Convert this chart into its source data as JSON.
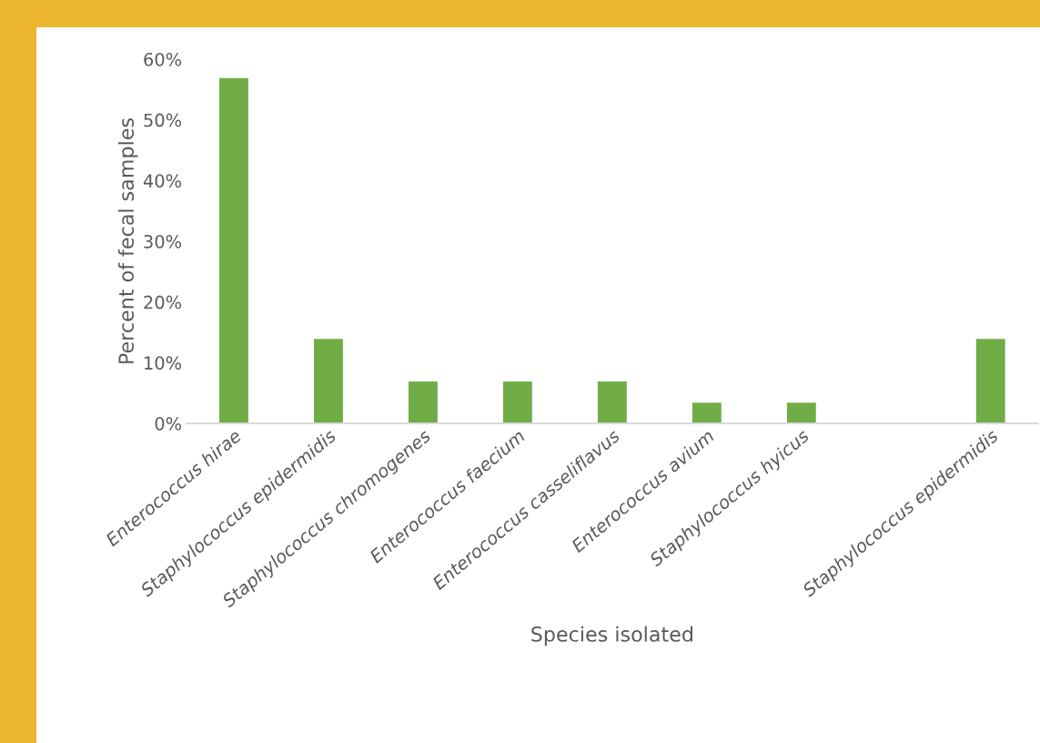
{
  "chart_data": {
    "type": "bar",
    "xlabel": "Species isolated",
    "ylabel": "Percent of fecal samples",
    "categories": [
      "Enterococcus hirae",
      "Staphylococcus epidermidis",
      "Staphylococcus chromogenes",
      "Enterococcus faecium",
      "Enterococcus casseliflavus",
      "Enterococcus avium",
      "Staphylococcus hyicus",
      null,
      "Staphylococcus epidermidis"
    ],
    "values": [
      57,
      14,
      7,
      7,
      7,
      3.5,
      3.5,
      null,
      14
    ],
    "color": "#70ad47",
    "ylim": [
      0,
      60
    ],
    "yticks": [
      {
        "value": 0,
        "label": "0%"
      },
      {
        "value": 10,
        "label": "10%"
      },
      {
        "value": 20,
        "label": "20%"
      },
      {
        "value": 30,
        "label": "30%"
      },
      {
        "value": 40,
        "label": "40%"
      },
      {
        "value": 50,
        "label": "50%"
      },
      {
        "value": 60,
        "label": "60%"
      }
    ],
    "grid": false,
    "legend": false
  }
}
